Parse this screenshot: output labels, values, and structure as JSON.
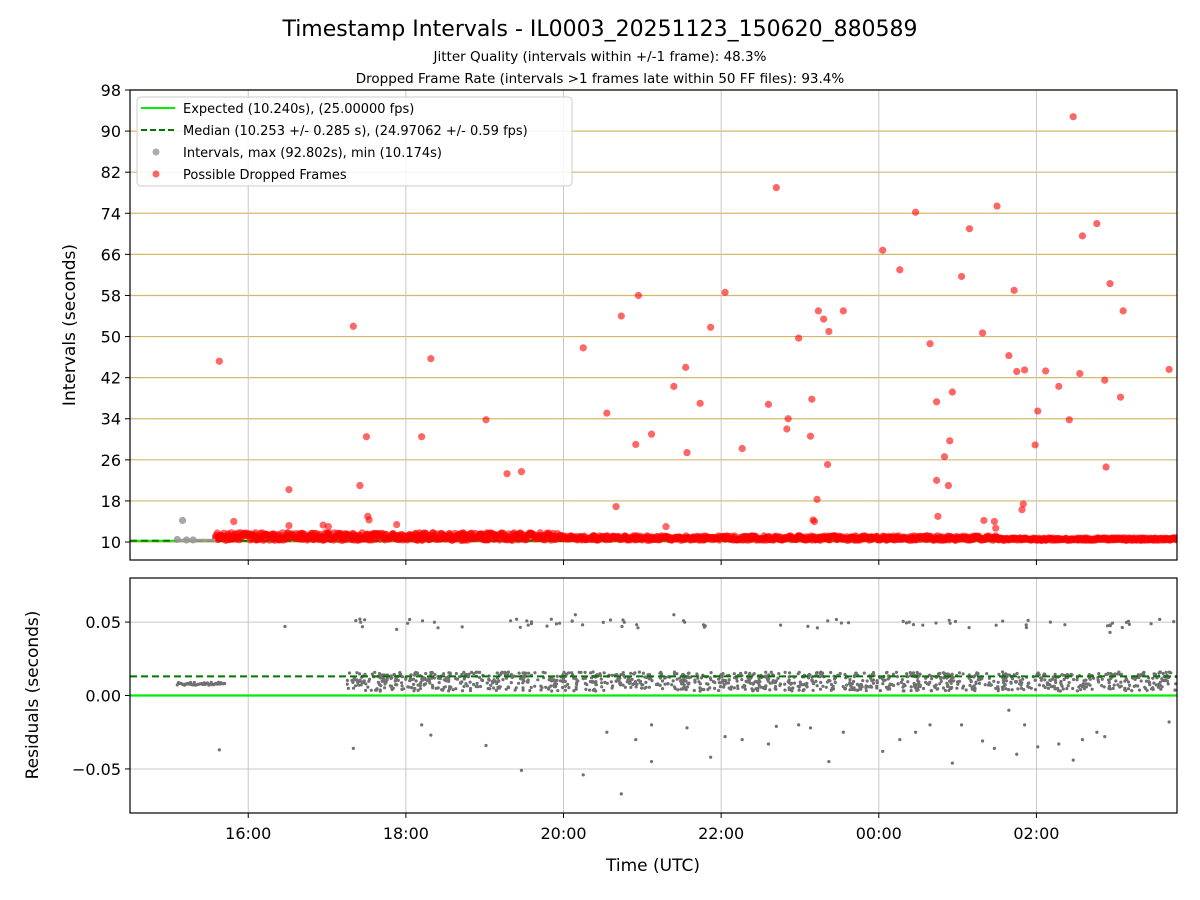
{
  "figure": {
    "title": "Timestamp Intervals - IL0003_20251123_150620_880589",
    "subtitle_1": "Jitter Quality (intervals within +/-1 frame): 48.3%",
    "subtitle_2": "Dropped Frame Rate (intervals >1 frames late within 50 FF files): 93.4%"
  },
  "colors": {
    "expected": "#00ee00",
    "median": "#007700",
    "intervals": "#999999",
    "dropped": "#ff0000",
    "hgrid_top": "#d4b96a",
    "grid": "#c8c8c8",
    "residual_points": "#707070"
  },
  "chart_data": [
    {
      "type": "scatter",
      "panel": "top",
      "xlabel": "",
      "ylabel": "Intervals (seconds)",
      "x_ticks": [
        "16:00",
        "18:00",
        "20:00",
        "22:00",
        "00:00",
        "02:00"
      ],
      "y_ticks": [
        10,
        18,
        26,
        34,
        42,
        50,
        58,
        66,
        74,
        82,
        90,
        98
      ],
      "xlim": [
        "2025-11-23 14:30",
        "2025-11-24 03:47"
      ],
      "ylim": [
        6.5,
        98
      ],
      "grid": "horizontal gold lines at y ticks, vertical grey lines at x ticks",
      "legend": {
        "placement": "upper-left",
        "entries": [
          {
            "label": "Expected (10.240s), (25.00000 fps)",
            "style": "solid line",
            "color": "#00ee00"
          },
          {
            "label": "Median (10.253 +/- 0.285 s), (24.97062 +/- 0.59 fps)",
            "style": "dashed line",
            "color": "#007700"
          },
          {
            "label": "Intervals, max (92.802s), min (10.174s)",
            "style": "marker",
            "color": "#999999"
          },
          {
            "label": "Possible Dropped Frames",
            "style": "marker",
            "color": "#ff0000"
          }
        ]
      },
      "reference_lines": {
        "expected": 10.24,
        "median": 10.253
      },
      "baseline": {
        "x_start": "2025-11-23 15:06",
        "x_end": "2025-11-24 03:47",
        "dense_from": "2025-11-23 15:35",
        "y_min": 10.17,
        "y_max": 11.9
      },
      "gray_points": [
        {
          "x": "2025-11-23 15:06",
          "y": 10.5
        },
        {
          "x": "2025-11-23 15:10",
          "y": 14.2
        },
        {
          "x": "2025-11-23 15:13",
          "y": 10.4
        },
        {
          "x": "2025-11-23 15:18",
          "y": 10.4
        }
      ],
      "dropped_points": [
        {
          "x": "2025-11-23 15:38",
          "y": 45.2
        },
        {
          "x": "2025-11-23 15:49",
          "y": 14.0
        },
        {
          "x": "2025-11-23 16:31",
          "y": 20.2
        },
        {
          "x": "2025-11-23 16:31",
          "y": 13.2
        },
        {
          "x": "2025-11-23 16:57",
          "y": 13.3
        },
        {
          "x": "2025-11-23 17:01",
          "y": 13.0
        },
        {
          "x": "2025-11-23 17:20",
          "y": 52.0
        },
        {
          "x": "2025-11-23 17:25",
          "y": 21.0
        },
        {
          "x": "2025-11-23 17:30",
          "y": 30.5
        },
        {
          "x": "2025-11-23 17:31",
          "y": 15.0
        },
        {
          "x": "2025-11-23 17:32",
          "y": 14.3
        },
        {
          "x": "2025-11-23 17:53",
          "y": 13.4
        },
        {
          "x": "2025-11-23 18:12",
          "y": 30.5
        },
        {
          "x": "2025-11-23 18:19",
          "y": 45.7
        },
        {
          "x": "2025-11-23 19:01",
          "y": 33.8
        },
        {
          "x": "2025-11-23 19:17",
          "y": 23.3
        },
        {
          "x": "2025-11-23 19:28",
          "y": 23.7
        },
        {
          "x": "2025-11-23 19:37",
          "y": 11.5
        },
        {
          "x": "2025-11-23 20:15",
          "y": 47.8
        },
        {
          "x": "2025-11-23 20:33",
          "y": 35.1
        },
        {
          "x": "2025-11-23 20:40",
          "y": 16.9
        },
        {
          "x": "2025-11-23 20:44",
          "y": 54.0
        },
        {
          "x": "2025-11-23 20:55",
          "y": 29.0
        },
        {
          "x": "2025-11-23 20:57",
          "y": 58.0
        },
        {
          "x": "2025-11-23 21:07",
          "y": 31.0
        },
        {
          "x": "2025-11-23 21:18",
          "y": 13.0
        },
        {
          "x": "2025-11-23 21:24",
          "y": 40.3
        },
        {
          "x": "2025-11-23 21:33",
          "y": 44.0
        },
        {
          "x": "2025-11-23 21:34",
          "y": 27.4
        },
        {
          "x": "2025-11-23 21:44",
          "y": 37.0
        },
        {
          "x": "2025-11-23 21:52",
          "y": 51.8
        },
        {
          "x": "2025-11-23 22:03",
          "y": 58.6
        },
        {
          "x": "2025-11-23 22:16",
          "y": 28.2
        },
        {
          "x": "2025-11-23 22:36",
          "y": 36.8
        },
        {
          "x": "2025-11-23 22:42",
          "y": 79.0
        },
        {
          "x": "2025-11-23 22:50",
          "y": 32.0
        },
        {
          "x": "2025-11-23 22:51",
          "y": 34.0
        },
        {
          "x": "2025-11-23 22:59",
          "y": 49.7
        },
        {
          "x": "2025-11-23 23:08",
          "y": 30.6
        },
        {
          "x": "2025-11-23 23:09",
          "y": 37.8
        },
        {
          "x": "2025-11-23 23:10",
          "y": 14.3
        },
        {
          "x": "2025-11-23 23:11",
          "y": 14.0
        },
        {
          "x": "2025-11-23 23:13",
          "y": 18.3
        },
        {
          "x": "2025-11-23 23:14",
          "y": 55.0
        },
        {
          "x": "2025-11-23 23:18",
          "y": 53.4
        },
        {
          "x": "2025-11-23 23:21",
          "y": 25.1
        },
        {
          "x": "2025-11-23 23:22",
          "y": 51.0
        },
        {
          "x": "2025-11-23 23:33",
          "y": 55.0
        },
        {
          "x": "2025-11-24 00:03",
          "y": 66.8
        },
        {
          "x": "2025-11-24 00:16",
          "y": 63.0
        },
        {
          "x": "2025-11-24 00:28",
          "y": 74.2
        },
        {
          "x": "2025-11-24 00:39",
          "y": 48.6
        },
        {
          "x": "2025-11-24 00:44",
          "y": 22.0
        },
        {
          "x": "2025-11-24 00:44",
          "y": 37.3
        },
        {
          "x": "2025-11-24 00:45",
          "y": 15.0
        },
        {
          "x": "2025-11-24 00:50",
          "y": 26.6
        },
        {
          "x": "2025-11-24 00:53",
          "y": 21.0
        },
        {
          "x": "2025-11-24 00:54",
          "y": 29.7
        },
        {
          "x": "2025-11-24 00:56",
          "y": 39.2
        },
        {
          "x": "2025-11-24 01:03",
          "y": 61.7
        },
        {
          "x": "2025-11-24 01:09",
          "y": 71.0
        },
        {
          "x": "2025-11-24 01:19",
          "y": 50.7
        },
        {
          "x": "2025-11-24 01:20",
          "y": 14.2
        },
        {
          "x": "2025-11-24 01:28",
          "y": 14.0
        },
        {
          "x": "2025-11-24 01:29",
          "y": 12.7
        },
        {
          "x": "2025-11-24 01:30",
          "y": 75.4
        },
        {
          "x": "2025-11-24 01:39",
          "y": 46.3
        },
        {
          "x": "2025-11-24 01:43",
          "y": 59.0
        },
        {
          "x": "2025-11-24 01:45",
          "y": 43.2
        },
        {
          "x": "2025-11-24 01:49",
          "y": 16.3
        },
        {
          "x": "2025-11-24 01:50",
          "y": 17.4
        },
        {
          "x": "2025-11-24 01:51",
          "y": 43.5
        },
        {
          "x": "2025-11-24 01:59",
          "y": 28.9
        },
        {
          "x": "2025-11-24 02:01",
          "y": 35.5
        },
        {
          "x": "2025-11-24 02:07",
          "y": 43.3
        },
        {
          "x": "2025-11-24 02:17",
          "y": 40.3
        },
        {
          "x": "2025-11-24 02:25",
          "y": 33.8
        },
        {
          "x": "2025-11-24 02:28",
          "y": 92.8
        },
        {
          "x": "2025-11-24 02:33",
          "y": 42.8
        },
        {
          "x": "2025-11-24 02:35",
          "y": 69.6
        },
        {
          "x": "2025-11-24 02:46",
          "y": 72.0
        },
        {
          "x": "2025-11-24 02:52",
          "y": 41.5
        },
        {
          "x": "2025-11-24 02:53",
          "y": 24.6
        },
        {
          "x": "2025-11-24 02:56",
          "y": 60.3
        },
        {
          "x": "2025-11-24 03:04",
          "y": 38.2
        },
        {
          "x": "2025-11-24 03:06",
          "y": 55.0
        },
        {
          "x": "2025-11-24 03:41",
          "y": 43.6
        }
      ]
    },
    {
      "type": "scatter",
      "panel": "bottom",
      "xlabel": "Time (UTC)",
      "ylabel": "Residuals (seconds)",
      "x_ticks": [
        "16:00",
        "18:00",
        "20:00",
        "22:00",
        "00:00",
        "02:00"
      ],
      "y_ticks": [
        "0.05",
        "0.00",
        "−0.05"
      ],
      "y_tick_values": [
        0.05,
        0.0,
        -0.05
      ],
      "xlim": [
        "2025-11-23 14:30",
        "2025-11-24 03:47"
      ],
      "ylim": [
        -0.08,
        0.08
      ],
      "grid": "horizontal and vertical grey lines at ticks",
      "reference_lines": {
        "expected": 0.0,
        "median": 0.013
      },
      "flat_segment": {
        "x_start": "2025-11-23 15:06",
        "x_end": "2025-11-23 15:42",
        "y": 0.008
      },
      "band": {
        "x_start": "2025-11-23 17:15",
        "x_end": "2025-11-24 03:47",
        "y_min": 0.003,
        "y_max": 0.016
      },
      "upper_cluster_y": 0.049,
      "residual_outliers": [
        {
          "x": "2025-11-23 15:38",
          "y": -0.037
        },
        {
          "x": "2025-11-23 16:28",
          "y": 0.047
        },
        {
          "x": "2025-11-23 17:20",
          "y": -0.036
        },
        {
          "x": "2025-11-23 17:25",
          "y": 0.052
        },
        {
          "x": "2025-11-23 17:53",
          "y": 0.045
        },
        {
          "x": "2025-11-23 18:12",
          "y": -0.02
        },
        {
          "x": "2025-11-23 18:19",
          "y": -0.027
        },
        {
          "x": "2025-11-23 19:01",
          "y": -0.034
        },
        {
          "x": "2025-11-23 19:28",
          "y": -0.051
        },
        {
          "x": "2025-11-23 20:09",
          "y": 0.055
        },
        {
          "x": "2025-11-23 20:15",
          "y": -0.054
        },
        {
          "x": "2025-11-23 20:33",
          "y": -0.025
        },
        {
          "x": "2025-11-23 20:44",
          "y": -0.067
        },
        {
          "x": "2025-11-23 20:55",
          "y": -0.03
        },
        {
          "x": "2025-11-23 21:07",
          "y": -0.045
        },
        {
          "x": "2025-11-23 21:07",
          "y": -0.02
        },
        {
          "x": "2025-11-23 21:24",
          "y": 0.055
        },
        {
          "x": "2025-11-23 21:34",
          "y": -0.022
        },
        {
          "x": "2025-11-23 21:52",
          "y": -0.042
        },
        {
          "x": "2025-11-23 22:03",
          "y": -0.028
        },
        {
          "x": "2025-11-23 22:16",
          "y": -0.03
        },
        {
          "x": "2025-11-23 22:36",
          "y": -0.033
        },
        {
          "x": "2025-11-23 22:42",
          "y": -0.021
        },
        {
          "x": "2025-11-23 22:59",
          "y": -0.02
        },
        {
          "x": "2025-11-23 23:08",
          "y": -0.022
        },
        {
          "x": "2025-11-23 23:22",
          "y": -0.045
        },
        {
          "x": "2025-11-23 23:33",
          "y": -0.025
        },
        {
          "x": "2025-11-24 00:03",
          "y": -0.038
        },
        {
          "x": "2025-11-24 00:16",
          "y": -0.03
        },
        {
          "x": "2025-11-24 00:28",
          "y": -0.025
        },
        {
          "x": "2025-11-24 00:39",
          "y": -0.02
        },
        {
          "x": "2025-11-24 00:56",
          "y": -0.046
        },
        {
          "x": "2025-11-24 01:03",
          "y": -0.02
        },
        {
          "x": "2025-11-24 01:19",
          "y": -0.031
        },
        {
          "x": "2025-11-24 01:28",
          "y": -0.036
        },
        {
          "x": "2025-11-24 01:39",
          "y": -0.01
        },
        {
          "x": "2025-11-24 01:45",
          "y": -0.04
        },
        {
          "x": "2025-11-24 01:51",
          "y": -0.02
        },
        {
          "x": "2025-11-24 02:01",
          "y": -0.035
        },
        {
          "x": "2025-11-24 02:17",
          "y": -0.033
        },
        {
          "x": "2025-11-24 02:28",
          "y": -0.044
        },
        {
          "x": "2025-11-24 02:35",
          "y": -0.03
        },
        {
          "x": "2025-11-24 02:46",
          "y": -0.025
        },
        {
          "x": "2025-11-24 02:52",
          "y": -0.028
        },
        {
          "x": "2025-11-24 02:56",
          "y": 0.043
        },
        {
          "x": "2025-11-24 02:56",
          "y": 0.048
        },
        {
          "x": "2025-11-24 03:41",
          "y": -0.018
        }
      ]
    }
  ]
}
